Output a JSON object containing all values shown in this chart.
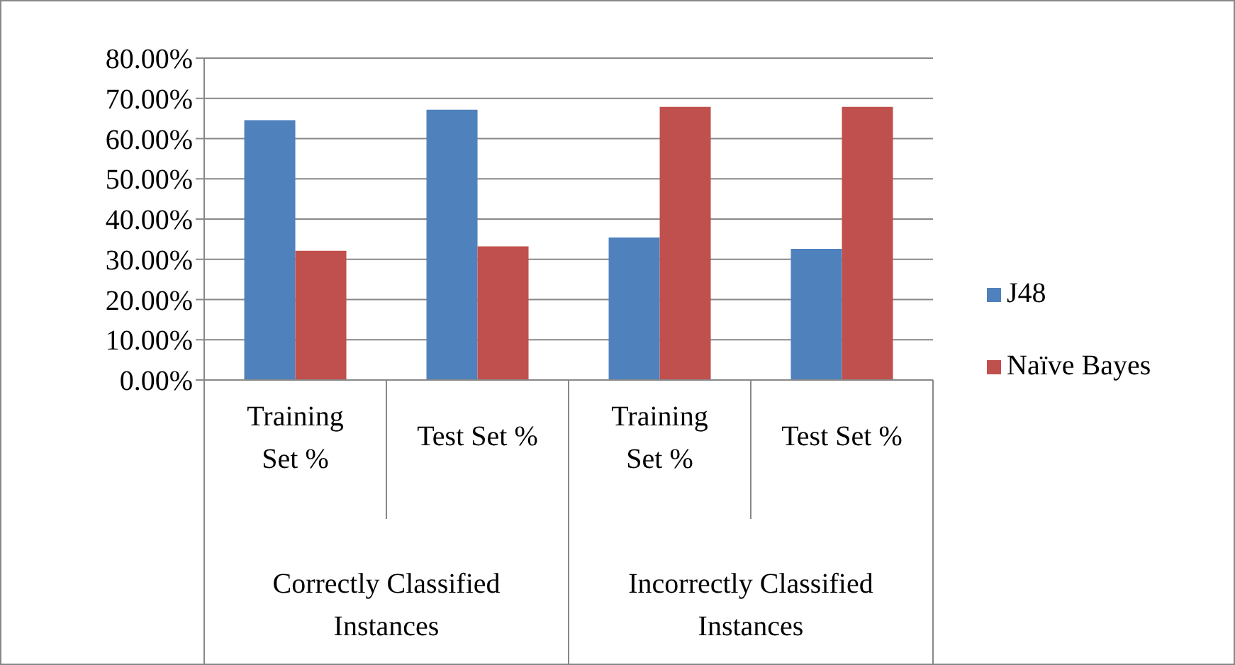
{
  "chart_data": {
    "type": "bar",
    "categories": [
      "Training Set %",
      "Test Set %",
      "Training Set %",
      "Test Set %"
    ],
    "series": [
      {
        "name": "J48",
        "color": "#4f81bd",
        "values": [
          64.6,
          67.2,
          35.4,
          32.6
        ]
      },
      {
        "name": "Naïve Bayes",
        "color": "#c0504d",
        "values": [
          32.1,
          33.2,
          67.9,
          67.9
        ]
      }
    ],
    "ylim": [
      0,
      80
    ],
    "yticks": [
      {
        "value": 0,
        "label": "0.00%"
      },
      {
        "value": 10,
        "label": "10.00%"
      },
      {
        "value": 20,
        "label": "20.00%"
      },
      {
        "value": 30,
        "label": "30.00%"
      },
      {
        "value": 40,
        "label": "40.00%"
      },
      {
        "value": 50,
        "label": "50.00%"
      },
      {
        "value": 60,
        "label": "60.00%"
      },
      {
        "value": 70,
        "label": "70.00%"
      },
      {
        "value": 80,
        "label": "80.00%"
      }
    ],
    "annotations": [
      "Correctly Classified Instances",
      "Incorrectly Classified Instances"
    ],
    "grid": "y",
    "legend": "right"
  }
}
